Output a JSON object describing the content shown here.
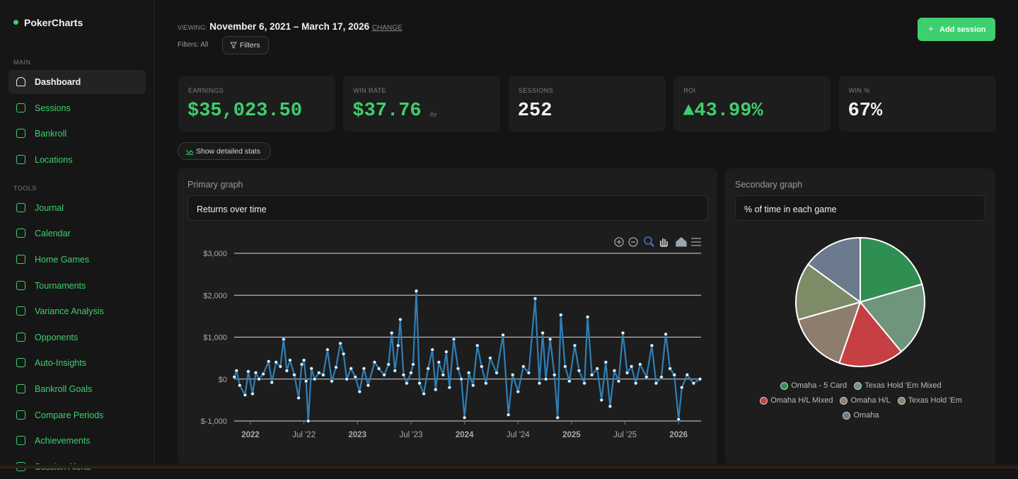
{
  "sidebar": {
    "brand": "PokerCharts",
    "sections": [
      {
        "label": "MAIN",
        "items": [
          "Dashboard",
          "Sessions",
          "Bankroll",
          "Locations"
        ]
      },
      {
        "label": "TOOLS",
        "items": [
          "Journal",
          "Calendar",
          "Home Games",
          "Tournaments",
          "Variance Analysis",
          "Opponents",
          "Auto-Insights",
          "Bankroll Goals",
          "Compare Periods",
          "Achievements",
          "Session Alerts"
        ]
      }
    ]
  },
  "header": {
    "viewing_label": "VIEWING:",
    "date_range": "November 6, 2021 – March 17, 2026",
    "change": "CHANGE",
    "filters_label": "Filters: All",
    "filters_button": "Filters",
    "add_session": "Add session"
  },
  "stats": [
    {
      "label": "EARNINGS",
      "value": "$35,023.50",
      "color": "#3ecf6e"
    },
    {
      "label": "WIN RATE",
      "value": "$37.76",
      "unit": "/hr",
      "color": "#3ecf6e"
    },
    {
      "label": "SESSIONS",
      "value": "252",
      "color": "#f2f2f2"
    },
    {
      "label": "ROI",
      "value": "▲43.99%",
      "color": "#3ecf6e"
    },
    {
      "label": "WIN %",
      "value": "67%",
      "color": "#f2f2f2"
    }
  ],
  "detailed_stats_button": "Show detailed stats",
  "chart_data": [
    {
      "type": "line",
      "panel_title": "Primary graph",
      "selected_view": "Returns over time",
      "color": "#2f7fb5",
      "grid": true,
      "xlim": [
        2021.848,
        2026.21
      ],
      "xticks": [
        2022,
        {
          "value": 2022.5,
          "label": "Jul '22"
        },
        2023,
        {
          "value": 2023.5,
          "label": "Jul '23"
        },
        2024,
        {
          "value": 2024.5,
          "label": "Jul '24"
        },
        2025,
        {
          "value": 2025.5,
          "label": "Jul '25"
        },
        2026
      ],
      "ylim": [
        -1000,
        3000
      ],
      "yticks": [
        {
          "value": -1000,
          "label": "$-1,000"
        },
        {
          "value": 0,
          "label": "$0"
        },
        {
          "value": 1000,
          "label": "$1,000"
        },
        {
          "value": 2000,
          "label": "$2,000"
        },
        {
          "value": 3000,
          "label": "$3,000"
        }
      ],
      "x": [
        2021.85,
        2021.87,
        2021.9,
        2021.95,
        2021.98,
        2022.02,
        2022.05,
        2022.08,
        2022.12,
        2022.17,
        2022.2,
        2022.24,
        2022.28,
        2022.31,
        2022.34,
        2022.37,
        2022.41,
        2022.45,
        2022.48,
        2022.5,
        2022.52,
        2022.54,
        2022.57,
        2022.6,
        2022.64,
        2022.68,
        2022.72,
        2022.76,
        2022.8,
        2022.84,
        2022.87,
        2022.9,
        2022.94,
        2022.98,
        2023.02,
        2023.06,
        2023.1,
        2023.16,
        2023.2,
        2023.25,
        2023.29,
        2023.32,
        2023.35,
        2023.38,
        2023.4,
        2023.43,
        2023.46,
        2023.5,
        2023.52,
        2023.55,
        2023.58,
        2023.62,
        2023.66,
        2023.7,
        2023.73,
        2023.76,
        2023.8,
        2023.83,
        2023.86,
        2023.9,
        2023.94,
        2023.97,
        2024.0,
        2024.04,
        2024.08,
        2024.12,
        2024.16,
        2024.2,
        2024.24,
        2024.3,
        2024.36,
        2024.41,
        2024.45,
        2024.5,
        2024.55,
        2024.6,
        2024.66,
        2024.7,
        2024.73,
        2024.76,
        2024.8,
        2024.84,
        2024.87,
        2024.9,
        2024.94,
        2024.98,
        2025.03,
        2025.07,
        2025.12,
        2025.15,
        2025.19,
        2025.24,
        2025.28,
        2025.32,
        2025.36,
        2025.4,
        2025.44,
        2025.48,
        2025.52,
        2025.56,
        2025.6,
        2025.64,
        2025.7,
        2025.75,
        2025.79,
        2025.84,
        2025.88,
        2025.92,
        2025.96,
        2026.0,
        2026.03,
        2026.08,
        2026.14,
        2026.2
      ],
      "values": [
        50,
        200,
        -150,
        -380,
        180,
        -350,
        150,
        0,
        120,
        420,
        -80,
        400,
        300,
        950,
        200,
        450,
        100,
        -450,
        350,
        450,
        -50,
        -1000,
        250,
        0,
        150,
        100,
        700,
        -50,
        280,
        850,
        600,
        0,
        250,
        50,
        -300,
        250,
        -150,
        400,
        250,
        100,
        350,
        1100,
        200,
        800,
        1420,
        100,
        -100,
        150,
        350,
        2100,
        -100,
        -350,
        250,
        700,
        -250,
        400,
        100,
        650,
        -200,
        950,
        250,
        0,
        -920,
        150,
        -150,
        800,
        300,
        -100,
        500,
        150,
        1050,
        -850,
        100,
        -300,
        300,
        150,
        1920,
        -100,
        1100,
        0,
        950,
        100,
        -920,
        1530,
        300,
        -50,
        800,
        200,
        -100,
        1480,
        100,
        250,
        -500,
        400,
        -650,
        200,
        -50,
        1100,
        150,
        300,
        -100,
        350,
        50,
        800,
        -100,
        50,
        1070,
        250,
        100,
        -960,
        -200,
        100,
        -100,
        0
      ]
    },
    {
      "type": "pie",
      "panel_title": "Secondary graph",
      "selected_view": "% of time in each game",
      "categories": [
        "Omaha - 5 Card",
        "Texas Hold 'Em Mixed",
        "Omaha H/L Mixed",
        "Omaha H/L",
        "Texas Hold 'Em",
        "Omaha"
      ],
      "values": [
        20.5,
        18.5,
        16.3,
        15.3,
        14.4,
        15.0
      ],
      "colors": [
        "#2f8f52",
        "#6f957c",
        "#c63f43",
        "#8d7d6f",
        "#7d8b67",
        "#6b7a8c"
      ]
    }
  ]
}
